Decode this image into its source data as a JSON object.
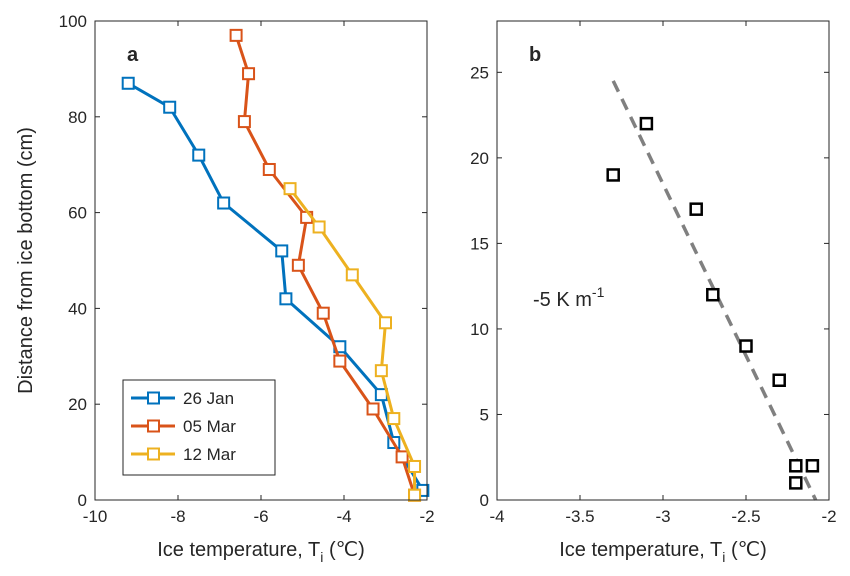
{
  "chart_data": [
    {
      "panel_label": "a",
      "type": "line",
      "xlabel": "Ice temperature, T",
      "xlabel_sub": "i",
      "xlabel_unit": " (℃)",
      "ylabel": "Distance from ice bottom (cm)",
      "xlim": [
        -10,
        -2
      ],
      "ylim": [
        0,
        100
      ],
      "xticks": [
        -10,
        -8,
        -6,
        -4,
        -2
      ],
      "yticks": [
        0,
        20,
        40,
        60,
        80,
        100
      ],
      "grid": false,
      "legend": "bottom-left",
      "marker": "square",
      "series": [
        {
          "name": "26 Jan",
          "color": "#0072BD",
          "x": [
            -9.2,
            -8.2,
            -7.5,
            -6.9,
            -5.5,
            -5.4,
            -4.1,
            -3.1,
            -2.8,
            -2.1
          ],
          "y": [
            87,
            82,
            72,
            62,
            52,
            42,
            32,
            22,
            12,
            2
          ]
        },
        {
          "name": "05 Mar",
          "color": "#D95319",
          "x": [
            -6.6,
            -6.3,
            -6.4,
            -5.8,
            -4.9,
            -5.1,
            -4.5,
            -4.1,
            -3.3,
            -2.6,
            -2.3
          ],
          "y": [
            97,
            89,
            79,
            69,
            59,
            49,
            39,
            29,
            19,
            9,
            1
          ]
        },
        {
          "name": "12 Mar",
          "color": "#EDB120",
          "x": [
            -5.3,
            -4.6,
            -3.8,
            -3.0,
            -3.1,
            -2.8,
            -2.3,
            -2.3
          ],
          "y": [
            65,
            57,
            47,
            37,
            27,
            17,
            7,
            1
          ]
        }
      ]
    },
    {
      "panel_label": "b",
      "type": "scatter",
      "xlabel": "Ice temperature, T",
      "xlabel_sub": "i",
      "xlabel_unit": " (℃)",
      "ylabel": "",
      "xlim": [
        -4,
        -2
      ],
      "ylim": [
        0,
        28
      ],
      "xticks": [
        -4,
        -3.5,
        -3,
        -2.5,
        -2
      ],
      "yticks": [
        0,
        5,
        10,
        15,
        20,
        25
      ],
      "grid": false,
      "marker": "square",
      "series": [
        {
          "color": "#000000",
          "x": [
            -3.3,
            -3.1,
            -2.8,
            -2.7,
            -2.5,
            -2.3,
            -2.2,
            -2.1,
            -2.2
          ],
          "y": [
            19,
            22,
            17,
            12,
            9,
            7,
            2,
            2,
            1
          ]
        }
      ],
      "fit_line": {
        "color": "#808080",
        "style": "dashed",
        "x": [
          -3.3,
          -2.08
        ],
        "y": [
          24.5,
          0
        ]
      },
      "annotation": {
        "text": "-5 K m",
        "superscript": "-1"
      }
    }
  ]
}
